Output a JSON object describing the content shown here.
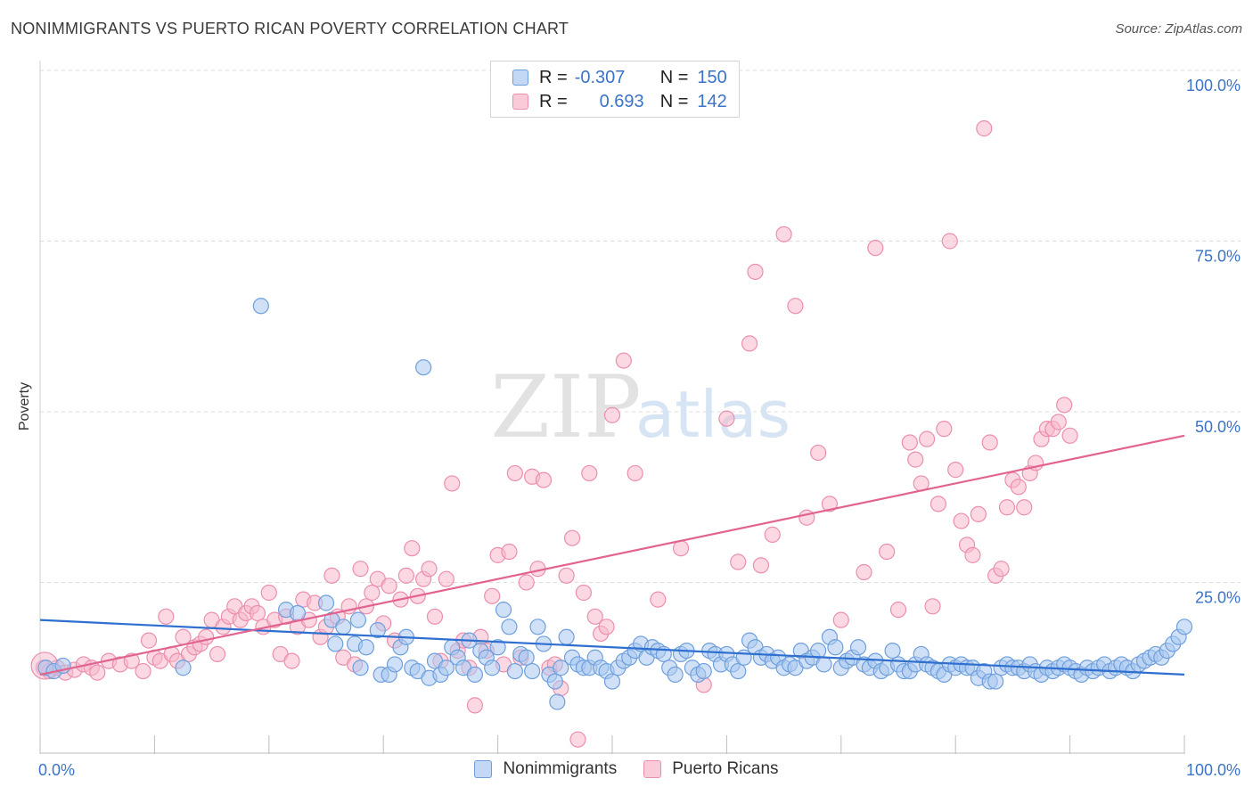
{
  "title": "NONIMMIGRANTS VS PUERTO RICAN POVERTY CORRELATION CHART",
  "source": "Source: ZipAtlas.com",
  "watermark": {
    "zip": "ZIP",
    "atlas": "atlas"
  },
  "legend": {
    "series": [
      {
        "r_label": "R =",
        "r_value": "-0.307",
        "n_label": "N =",
        "n_value": "150"
      },
      {
        "r_label": "R =",
        "r_value": "0.693",
        "n_label": "N =",
        "n_value": "142"
      }
    ]
  },
  "colors": {
    "blue_fill": "#a9c8f0",
    "blue_stroke": "#6e9fdc",
    "blue_line": "#2e6fcf",
    "pink_fill": "#f7b8cb",
    "pink_stroke": "#eb8fae",
    "pink_line": "#e2638f",
    "tick_text": "#3b73c7"
  },
  "chart_data": {
    "type": "scatter",
    "title": "NONIMMIGRANTS VS PUERTO RICAN POVERTY CORRELATION CHART",
    "xlabel": "",
    "ylabel": "Poverty",
    "xlim": [
      0,
      100
    ],
    "ylim": [
      0,
      100
    ],
    "x_tick_labels": [
      "0.0%",
      "100.0%"
    ],
    "y_ticks": [
      25,
      50,
      75,
      100
    ],
    "y_tick_labels": [
      "25.0%",
      "50.0%",
      "75.0%",
      "100.0%"
    ],
    "grid": true,
    "legend_position": "top-center",
    "series": [
      {
        "name": "Nonimmigrants",
        "r": -0.307,
        "n": 150,
        "trend": {
          "x": [
            0,
            100
          ],
          "y": [
            19.5,
            11.5
          ]
        },
        "points": [
          [
            0.5,
            12.5
          ],
          [
            1.2,
            12.0
          ],
          [
            2.0,
            12.8
          ],
          [
            12.5,
            12.5
          ],
          [
            19.3,
            65.5
          ],
          [
            21.5,
            21.0
          ],
          [
            22.5,
            20.5
          ],
          [
            25.0,
            22.0
          ],
          [
            25.5,
            19.5
          ],
          [
            25.8,
            16.0
          ],
          [
            26.5,
            18.5
          ],
          [
            27.5,
            16.0
          ],
          [
            27.8,
            19.5
          ],
          [
            28.0,
            12.5
          ],
          [
            28.5,
            15.5
          ],
          [
            29.5,
            18.0
          ],
          [
            29.8,
            11.5
          ],
          [
            30.5,
            11.5
          ],
          [
            31.0,
            13.0
          ],
          [
            31.5,
            15.5
          ],
          [
            32.0,
            17.0
          ],
          [
            32.5,
            12.5
          ],
          [
            33.0,
            12.0
          ],
          [
            33.5,
            56.5
          ],
          [
            34.0,
            11.0
          ],
          [
            34.5,
            13.5
          ],
          [
            35.0,
            11.5
          ],
          [
            35.5,
            12.5
          ],
          [
            36.0,
            15.5
          ],
          [
            36.5,
            14.0
          ],
          [
            37.0,
            12.5
          ],
          [
            37.5,
            16.5
          ],
          [
            38.0,
            11.5
          ],
          [
            38.5,
            15.0
          ],
          [
            39.0,
            14.0
          ],
          [
            39.5,
            12.5
          ],
          [
            40.0,
            15.5
          ],
          [
            40.5,
            21.0
          ],
          [
            41.0,
            18.5
          ],
          [
            41.5,
            12.0
          ],
          [
            42.0,
            14.5
          ],
          [
            42.5,
            14.0
          ],
          [
            43.0,
            12.0
          ],
          [
            43.5,
            18.5
          ],
          [
            44.0,
            16.0
          ],
          [
            44.5,
            11.5
          ],
          [
            45.0,
            10.5
          ],
          [
            45.2,
            7.5
          ],
          [
            45.5,
            12.5
          ],
          [
            46.0,
            17.0
          ],
          [
            46.5,
            14.0
          ],
          [
            47.0,
            13.0
          ],
          [
            47.5,
            12.5
          ],
          [
            48.0,
            12.5
          ],
          [
            48.5,
            14.0
          ],
          [
            49.0,
            12.5
          ],
          [
            49.5,
            12.0
          ],
          [
            50.0,
            10.5
          ],
          [
            50.5,
            12.5
          ],
          [
            51.0,
            13.5
          ],
          [
            51.5,
            14.0
          ],
          [
            52.0,
            15.0
          ],
          [
            52.5,
            16.0
          ],
          [
            53.0,
            14.0
          ],
          [
            53.5,
            15.5
          ],
          [
            54.0,
            15.0
          ],
          [
            54.5,
            14.5
          ],
          [
            55.0,
            12.5
          ],
          [
            55.5,
            11.5
          ],
          [
            56.0,
            14.5
          ],
          [
            56.5,
            15.0
          ],
          [
            57.0,
            12.5
          ],
          [
            57.5,
            11.5
          ],
          [
            58.0,
            12.0
          ],
          [
            58.5,
            15.0
          ],
          [
            59.0,
            14.5
          ],
          [
            59.5,
            13.0
          ],
          [
            60.0,
            14.5
          ],
          [
            60.5,
            13.0
          ],
          [
            61.0,
            12.0
          ],
          [
            61.5,
            14.0
          ],
          [
            62.0,
            16.5
          ],
          [
            62.5,
            15.5
          ],
          [
            63.0,
            14.0
          ],
          [
            63.5,
            14.5
          ],
          [
            64.0,
            13.5
          ],
          [
            64.5,
            14.0
          ],
          [
            65.0,
            12.5
          ],
          [
            65.5,
            13.0
          ],
          [
            66.0,
            12.5
          ],
          [
            66.5,
            15.0
          ],
          [
            67.0,
            13.5
          ],
          [
            67.5,
            14.0
          ],
          [
            68.0,
            15.0
          ],
          [
            68.5,
            13.0
          ],
          [
            69.0,
            17.0
          ],
          [
            69.5,
            15.5
          ],
          [
            70.0,
            12.5
          ],
          [
            70.5,
            13.5
          ],
          [
            71.0,
            14.0
          ],
          [
            71.5,
            15.5
          ],
          [
            72.0,
            13.0
          ],
          [
            72.5,
            12.5
          ],
          [
            73.0,
            13.5
          ],
          [
            73.5,
            12.0
          ],
          [
            74.0,
            12.5
          ],
          [
            74.5,
            15.0
          ],
          [
            75.0,
            13.0
          ],
          [
            75.5,
            12.0
          ],
          [
            76.0,
            12.0
          ],
          [
            76.5,
            13.0
          ],
          [
            77.0,
            14.5
          ],
          [
            77.5,
            13.0
          ],
          [
            78.0,
            12.5
          ],
          [
            78.5,
            12.0
          ],
          [
            79.0,
            11.5
          ],
          [
            79.5,
            13.0
          ],
          [
            80.0,
            12.5
          ],
          [
            80.5,
            13.0
          ],
          [
            81.0,
            12.5
          ],
          [
            81.5,
            12.5
          ],
          [
            82.0,
            11.0
          ],
          [
            82.5,
            12.0
          ],
          [
            83.0,
            10.5
          ],
          [
            83.5,
            10.5
          ],
          [
            84.0,
            12.5
          ],
          [
            84.5,
            13.0
          ],
          [
            85.0,
            12.5
          ],
          [
            85.5,
            12.5
          ],
          [
            86.0,
            12.0
          ],
          [
            86.5,
            13.0
          ],
          [
            87.0,
            12.0
          ],
          [
            87.5,
            11.5
          ],
          [
            88.0,
            12.5
          ],
          [
            88.5,
            12.0
          ],
          [
            89.0,
            12.5
          ],
          [
            89.5,
            13.0
          ],
          [
            90.0,
            12.5
          ],
          [
            90.5,
            12.0
          ],
          [
            91.0,
            11.5
          ],
          [
            91.5,
            12.5
          ],
          [
            92.0,
            12.0
          ],
          [
            92.5,
            12.5
          ],
          [
            93.0,
            13.0
          ],
          [
            93.5,
            12.0
          ],
          [
            94.0,
            12.5
          ],
          [
            94.5,
            13.0
          ],
          [
            95.0,
            12.5
          ],
          [
            95.5,
            12.0
          ],
          [
            96.0,
            13.0
          ],
          [
            96.5,
            13.5
          ],
          [
            97.0,
            14.0
          ],
          [
            97.5,
            14.5
          ],
          [
            98.0,
            14.0
          ],
          [
            98.5,
            15.0
          ],
          [
            99.0,
            16.0
          ],
          [
            99.5,
            17.0
          ],
          [
            100.0,
            18.5
          ]
        ]
      },
      {
        "name": "Puerto Ricans",
        "r": 0.693,
        "n": 142,
        "trend": {
          "x": [
            0,
            100
          ],
          "y": [
            11.5,
            46.5
          ]
        },
        "points": [
          [
            0.3,
            12.5
          ],
          [
            0.8,
            12.0
          ],
          [
            1.5,
            12.5
          ],
          [
            2.2,
            11.8
          ],
          [
            3.0,
            12.2
          ],
          [
            3.8,
            13.0
          ],
          [
            4.5,
            12.5
          ],
          [
            5.0,
            11.8
          ],
          [
            6.0,
            13.5
          ],
          [
            7.0,
            13.0
          ],
          [
            8.0,
            13.5
          ],
          [
            9.0,
            12.0
          ],
          [
            9.5,
            16.5
          ],
          [
            10.0,
            14.0
          ],
          [
            10.5,
            13.5
          ],
          [
            11.0,
            20.0
          ],
          [
            11.5,
            14.5
          ],
          [
            12.0,
            13.5
          ],
          [
            12.5,
            17.0
          ],
          [
            13.0,
            14.5
          ],
          [
            13.5,
            15.5
          ],
          [
            14.0,
            16.0
          ],
          [
            14.5,
            17.0
          ],
          [
            15.0,
            19.5
          ],
          [
            15.5,
            14.5
          ],
          [
            16.0,
            18.5
          ],
          [
            16.5,
            20.0
          ],
          [
            17.0,
            21.5
          ],
          [
            17.5,
            19.5
          ],
          [
            18.0,
            20.5
          ],
          [
            18.5,
            21.5
          ],
          [
            19.0,
            20.5
          ],
          [
            19.5,
            18.5
          ],
          [
            20.0,
            23.5
          ],
          [
            20.5,
            19.5
          ],
          [
            21.0,
            14.5
          ],
          [
            21.5,
            20.0
          ],
          [
            22.0,
            13.5
          ],
          [
            22.5,
            18.5
          ],
          [
            23.0,
            22.5
          ],
          [
            23.5,
            19.5
          ],
          [
            24.0,
            22.0
          ],
          [
            24.5,
            17.0
          ],
          [
            25.0,
            18.5
          ],
          [
            25.5,
            26.0
          ],
          [
            26.0,
            20.0
          ],
          [
            26.5,
            14.0
          ],
          [
            27.0,
            21.5
          ],
          [
            27.5,
            13.0
          ],
          [
            28.0,
            27.0
          ],
          [
            28.5,
            21.5
          ],
          [
            29.0,
            23.5
          ],
          [
            29.5,
            25.5
          ],
          [
            30.0,
            19.0
          ],
          [
            30.5,
            24.5
          ],
          [
            31.0,
            16.5
          ],
          [
            31.5,
            22.5
          ],
          [
            32.0,
            26.0
          ],
          [
            32.5,
            30.0
          ],
          [
            33.0,
            23.0
          ],
          [
            33.5,
            25.5
          ],
          [
            34.0,
            27.0
          ],
          [
            34.5,
            20.0
          ],
          [
            35.0,
            13.5
          ],
          [
            35.5,
            25.5
          ],
          [
            36.0,
            39.5
          ],
          [
            36.5,
            15.0
          ],
          [
            37.0,
            16.5
          ],
          [
            37.5,
            12.5
          ],
          [
            38.0,
            7.0
          ],
          [
            38.5,
            17.0
          ],
          [
            39.0,
            15.0
          ],
          [
            39.5,
            23.0
          ],
          [
            40.0,
            29.0
          ],
          [
            40.5,
            13.0
          ],
          [
            41.0,
            29.5
          ],
          [
            41.5,
            41.0
          ],
          [
            42.0,
            14.0
          ],
          [
            42.5,
            25.0
          ],
          [
            43.0,
            40.5
          ],
          [
            43.5,
            27.0
          ],
          [
            44.0,
            40.0
          ],
          [
            44.5,
            12.5
          ],
          [
            45.0,
            13.0
          ],
          [
            45.5,
            9.5
          ],
          [
            46.0,
            26.0
          ],
          [
            46.5,
            31.5
          ],
          [
            47.0,
            2.0
          ],
          [
            47.5,
            23.5
          ],
          [
            48.0,
            41.0
          ],
          [
            48.5,
            20.0
          ],
          [
            49.0,
            17.5
          ],
          [
            49.5,
            18.5
          ],
          [
            50.0,
            49.5
          ],
          [
            51.0,
            57.5
          ],
          [
            52.0,
            41.0
          ],
          [
            54.0,
            22.5
          ],
          [
            56.0,
            30.0
          ],
          [
            58.0,
            10.0
          ],
          [
            60.0,
            49.0
          ],
          [
            61.0,
            28.0
          ],
          [
            62.0,
            60.0
          ],
          [
            62.5,
            70.5
          ],
          [
            63.0,
            27.5
          ],
          [
            64.0,
            32.0
          ],
          [
            65.0,
            76.0
          ],
          [
            66.0,
            65.5
          ],
          [
            67.0,
            34.5
          ],
          [
            68.0,
            44.0
          ],
          [
            69.0,
            36.5
          ],
          [
            70.0,
            19.5
          ],
          [
            72.0,
            26.5
          ],
          [
            73.0,
            74.0
          ],
          [
            74.0,
            29.5
          ],
          [
            75.0,
            21.0
          ],
          [
            76.0,
            45.5
          ],
          [
            76.5,
            43.0
          ],
          [
            77.0,
            39.5
          ],
          [
            77.5,
            46.0
          ],
          [
            78.0,
            21.5
          ],
          [
            78.5,
            36.5
          ],
          [
            79.0,
            47.5
          ],
          [
            79.5,
            75.0
          ],
          [
            80.0,
            41.5
          ],
          [
            80.5,
            34.0
          ],
          [
            81.0,
            30.5
          ],
          [
            81.5,
            29.0
          ],
          [
            82.0,
            35.0
          ],
          [
            82.5,
            91.5
          ],
          [
            83.0,
            45.5
          ],
          [
            83.5,
            26.0
          ],
          [
            84.0,
            27.0
          ],
          [
            84.5,
            36.0
          ],
          [
            85.0,
            40.0
          ],
          [
            85.5,
            39.0
          ],
          [
            86.0,
            36.0
          ],
          [
            86.5,
            41.0
          ],
          [
            87.0,
            42.5
          ],
          [
            87.5,
            46.0
          ],
          [
            88.0,
            47.5
          ],
          [
            88.5,
            47.5
          ],
          [
            89.0,
            48.5
          ],
          [
            89.5,
            51.0
          ],
          [
            90.0,
            46.5
          ]
        ]
      }
    ]
  },
  "bottom_legend": [
    "Nonimmigrants",
    "Puerto Ricans"
  ]
}
